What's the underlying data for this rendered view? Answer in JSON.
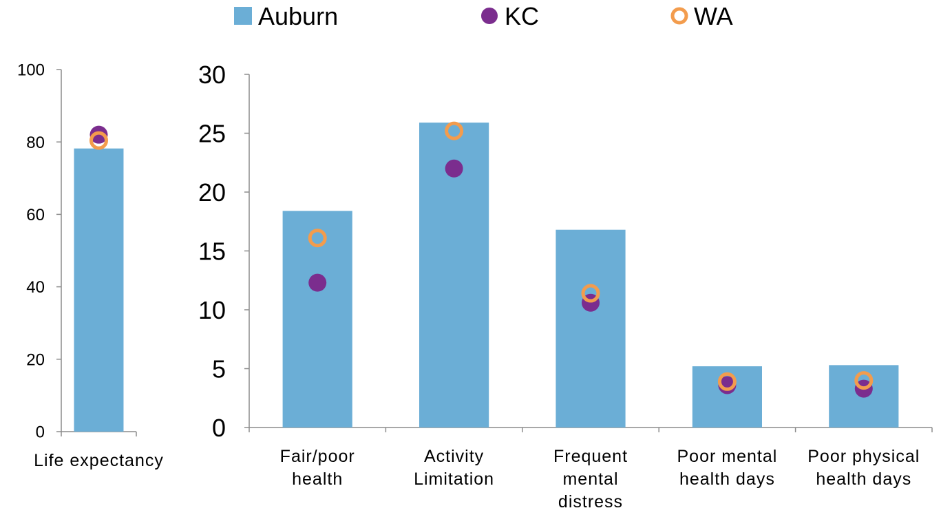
{
  "legend": {
    "position": "top",
    "items": [
      {
        "label": "Auburn",
        "marker": "square",
        "color": "#6BAED6"
      },
      {
        "label": "KC",
        "marker": "filled-circle",
        "color": "#7B2D8E"
      },
      {
        "label": "WA",
        "marker": "open-circle",
        "color": "#F39C4D"
      }
    ]
  },
  "chart_data": [
    {
      "type": "bar",
      "categories": [
        "Life expectancy"
      ],
      "series": [
        {
          "name": "Auburn",
          "kind": "bar",
          "values": [
            78.2
          ]
        },
        {
          "name": "KC",
          "kind": "marker",
          "values": [
            82.0
          ]
        },
        {
          "name": "WA",
          "kind": "marker",
          "values": [
            80.4
          ]
        }
      ],
      "ylim": [
        0,
        100
      ],
      "yticks": [
        0,
        20,
        40,
        60,
        80,
        100
      ],
      "grid": false
    },
    {
      "type": "bar",
      "categories": [
        "Fair/poor health",
        "Activity Limitation",
        "Frequent mental distress",
        "Poor mental health days",
        "Poor physical health days"
      ],
      "category_lines": [
        [
          "Fair/poor",
          "health"
        ],
        [
          "Activity",
          "Limitation"
        ],
        [
          "Frequent",
          "mental",
          "distress"
        ],
        [
          "Poor mental",
          "health days"
        ],
        [
          "Poor physical",
          "health days"
        ]
      ],
      "series": [
        {
          "name": "Auburn",
          "kind": "bar",
          "values": [
            18.4,
            25.9,
            16.8,
            5.2,
            5.3
          ]
        },
        {
          "name": "KC",
          "kind": "marker",
          "values": [
            12.3,
            22.0,
            10.6,
            3.6,
            3.3
          ]
        },
        {
          "name": "WA",
          "kind": "marker",
          "values": [
            16.1,
            25.2,
            11.4,
            3.9,
            4.0
          ]
        }
      ],
      "ylim": [
        0,
        30
      ],
      "yticks": [
        0,
        5,
        10,
        15,
        20,
        25,
        30
      ],
      "grid": false
    }
  ]
}
